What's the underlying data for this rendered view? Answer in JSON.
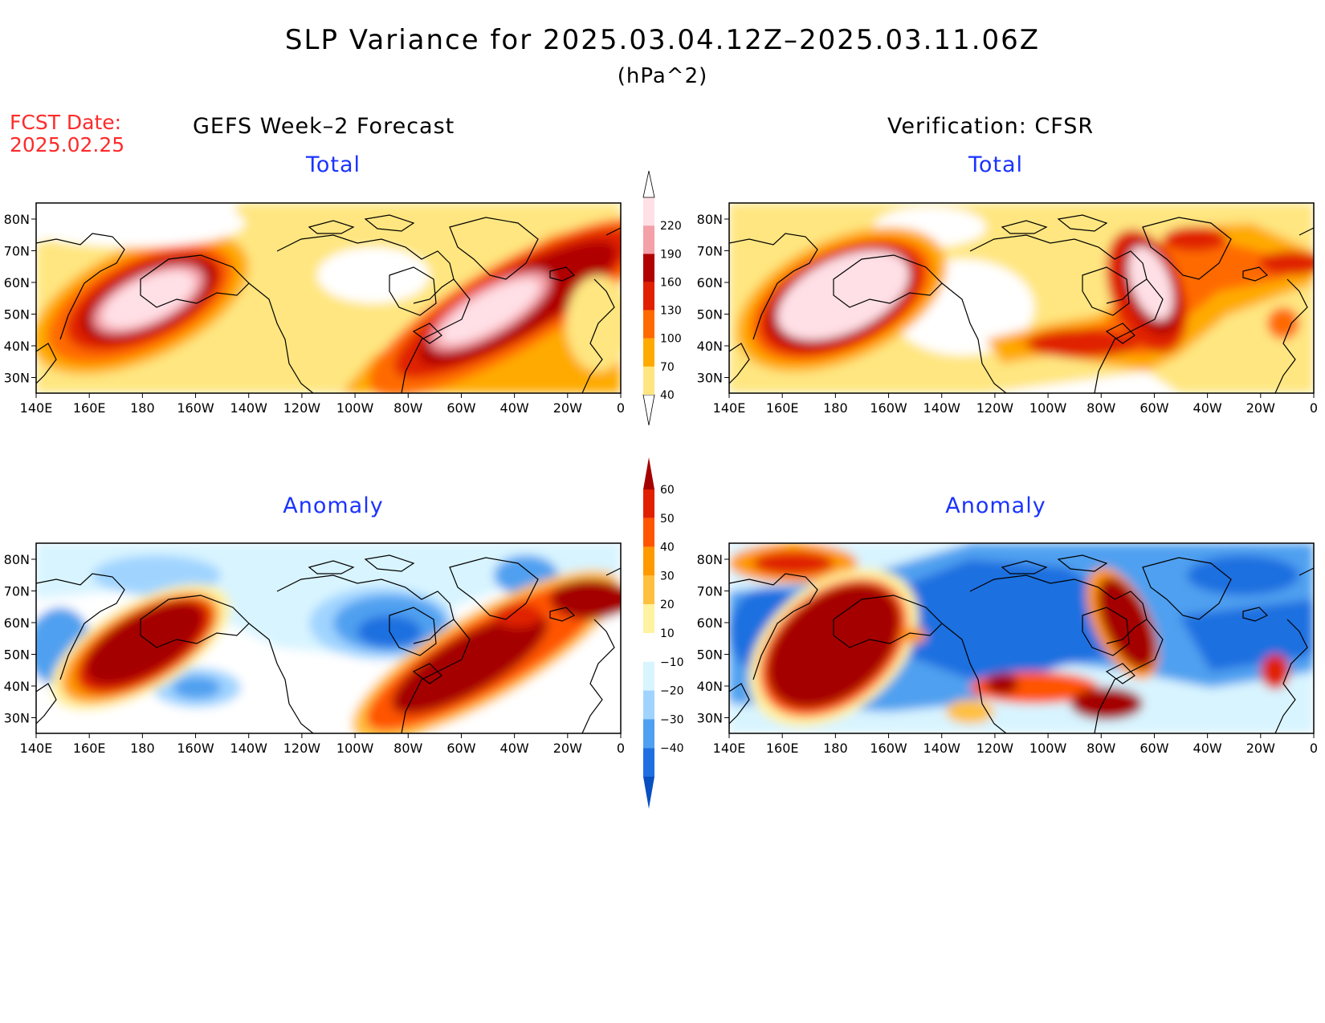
{
  "title": "SLP Variance for 2025.03.04.12Z–2025.03.11.06Z",
  "units": "(hPa^2)",
  "fcst_label": "FCST Date:",
  "fcst_date": "2025.02.25",
  "left_header": "GEFS Week–2 Forecast",
  "right_header": "Verification: CFSR",
  "panels": {
    "gefs_total": {
      "title": "Total"
    },
    "cfsr_total": {
      "title": "Total"
    },
    "gefs_anom": {
      "title": "Anomaly"
    },
    "cfsr_anom": {
      "title": "Anomaly"
    }
  },
  "axes": {
    "lon_labels": [
      "140E",
      "160E",
      "180",
      "160W",
      "140W",
      "120W",
      "100W",
      "80W",
      "60W",
      "40W",
      "20W",
      "0"
    ],
    "lat_labels": [
      "80N",
      "70N",
      "60N",
      "50N",
      "40N",
      "30N"
    ],
    "lon_range": [
      "140E",
      "0"
    ],
    "lat_range": [
      "25N",
      "85N"
    ]
  },
  "colorbars": {
    "total": {
      "levels": [
        "40",
        "70",
        "100",
        "130",
        "160",
        "190",
        "220"
      ],
      "colors": [
        "#ffe680",
        "#ffaa00",
        "#ff6a00",
        "#e02000",
        "#b00000",
        "#f4a0a8",
        "#ffe0e6"
      ]
    },
    "anomaly": {
      "levels": [
        "60",
        "50",
        "40",
        "30",
        "20",
        "10",
        "−10",
        "−20",
        "−30",
        "−40"
      ],
      "colors": [
        "#a50000",
        "#e02000",
        "#ff5500",
        "#ff9900",
        "#ffc040",
        "#fff2a0",
        "#ffffff",
        "#d8f4ff",
        "#a0d4ff",
        "#4fa0f0",
        "#1f6fe0",
        "#0a4fc0"
      ]
    }
  },
  "colors": {
    "title_blue": "#1a33ff",
    "fcst_red": "#ff2a2a"
  }
}
